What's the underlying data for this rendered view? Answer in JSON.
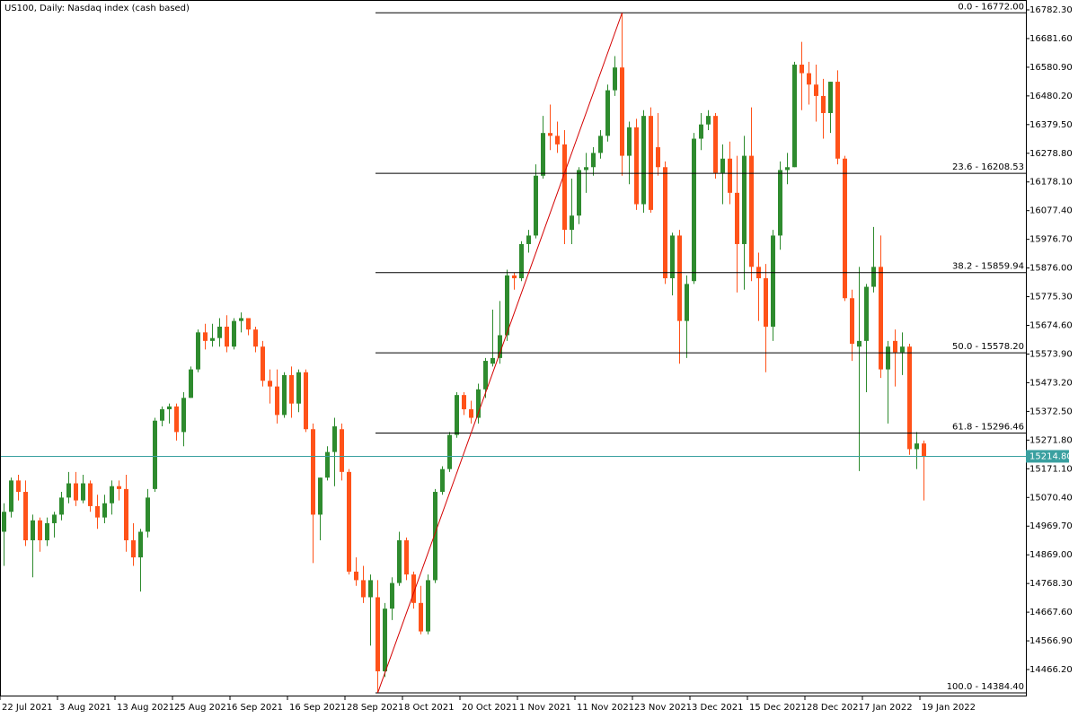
{
  "chart_data": {
    "type": "candlestick",
    "title": "US100, Daily:  Nasdaq index (cash based)",
    "categories": [
      "22 Jul 2021",
      null,
      null,
      null,
      null,
      null,
      null,
      null,
      "3 Aug 2021",
      null,
      null,
      null,
      null,
      null,
      null,
      null,
      "13 Aug 2021",
      null,
      null,
      null,
      null,
      null,
      null,
      null,
      "25 Aug 2021",
      null,
      null,
      null,
      null,
      null,
      null,
      null,
      "6 Sep 2021",
      null,
      null,
      null,
      null,
      null,
      null,
      null,
      "16 Sep 2021",
      null,
      null,
      null,
      null,
      null,
      null,
      null,
      "28 Sep 2021",
      null,
      null,
      null,
      null,
      null,
      null,
      null,
      "8 Oct 2021",
      null,
      null,
      null,
      null,
      null,
      null,
      null,
      "20 Oct 2021",
      null,
      null,
      null,
      null,
      null,
      null,
      null,
      "1 Nov 2021",
      null,
      null,
      null,
      null,
      null,
      null,
      null,
      "11 Nov 2021",
      null,
      null,
      null,
      null,
      null,
      null,
      null,
      "23 Nov 2021",
      null,
      null,
      null,
      null,
      null,
      null,
      null,
      "3 Dec 2021",
      null,
      null,
      null,
      null,
      null,
      null,
      null,
      "15 Dec 2021",
      null,
      null,
      null,
      null,
      null,
      null,
      null,
      "28 Dec 2021",
      null,
      null,
      null,
      null,
      null,
      null,
      null,
      "7 Jan 2022",
      null,
      null,
      null,
      null,
      null,
      null,
      null,
      "19 Jan 2022"
    ],
    "open": [
      14950,
      15020,
      15130,
      15090,
      14920,
      14990,
      14920,
      14980,
      15010,
      15070,
      15120,
      15060,
      15120,
      15040,
      15000,
      15050,
      15110,
      15100,
      14920,
      14860,
      14950,
      15100,
      15340,
      15380,
      15390,
      15300,
      15420,
      15520,
      15650,
      15620,
      15630,
      15670,
      15600,
      15690,
      15700,
      15660,
      15600,
      15480,
      15460,
      15360,
      15500,
      15400,
      15510,
      15310,
      15010,
      15140,
      15230,
      15310,
      15160,
      14810,
      14780,
      14720,
      14720,
      14460,
      14680,
      14770,
      14920,
      14800,
      14700,
      14600,
      14780,
      15090,
      15170,
      15290,
      15430,
      15380,
      15350,
      15450,
      15540,
      15560,
      15640,
      15850,
      15840,
      15960,
      15990,
      16200,
      16350,
      16340,
      16310,
      16010,
      16060,
      16220,
      16230,
      16280,
      16340,
      16500,
      16580,
      16270,
      16370,
      16100,
      16410,
      16300,
      16230,
      15840,
      15990,
      15690,
      15830,
      16330,
      16380,
      16410,
      16210,
      16260,
      16140,
      15960,
      16270,
      15880,
      15840,
      15670,
      15990,
      16220,
      16230,
      16590,
      16560,
      16520,
      16480,
      16420,
      16530,
      16260,
      15770,
      15600,
      15620,
      15810,
      15880,
      15520,
      15620,
      15580,
      15600,
      15240,
      15260
    ],
    "high": [
      15050,
      15140,
      15150,
      15130,
      15010,
      15000,
      15000,
      15020,
      15090,
      15160,
      15160,
      15150,
      15130,
      15080,
      15080,
      15130,
      15130,
      15150,
      14980,
      14960,
      15100,
      15350,
      15390,
      15400,
      15400,
      15440,
      15530,
      15660,
      15680,
      15680,
      15700,
      15710,
      15700,
      15720,
      15700,
      15670,
      15620,
      15520,
      15520,
      15510,
      15530,
      15520,
      15520,
      15330,
      15140,
      15250,
      15350,
      15330,
      15170,
      14860,
      14830,
      14800,
      14780,
      14700,
      14790,
      14950,
      14930,
      14810,
      14760,
      14800,
      15100,
      15180,
      15300,
      15440,
      15440,
      15410,
      15470,
      15560,
      15730,
      15760,
      15870,
      15860,
      15970,
      16010,
      16240,
      16410,
      16450,
      16390,
      16360,
      16190,
      16230,
      16280,
      16300,
      16360,
      16520,
      16620,
      16772,
      16390,
      16400,
      16430,
      16440,
      16420,
      16250,
      16000,
      16010,
      15850,
      16350,
      16420,
      16430,
      16420,
      16310,
      16320,
      16270,
      16340,
      16440,
      15930,
      15890,
      16010,
      16250,
      16280,
      16600,
      16670,
      16600,
      16590,
      16540,
      16530,
      16570,
      16270,
      15800,
      15880,
      15820,
      16020,
      15990,
      15620,
      15660,
      15650,
      15610,
      15300,
      15270
    ],
    "low": [
      14830,
      15000,
      15060,
      14900,
      14790,
      14880,
      14900,
      14930,
      14990,
      15050,
      15040,
      15050,
      15020,
      14960,
      14980,
      15010,
      15060,
      14880,
      14830,
      14740,
      14930,
      15090,
      15320,
      15330,
      15270,
      15250,
      15420,
      15510,
      15590,
      15600,
      15600,
      15580,
      15590,
      15650,
      15640,
      15580,
      15460,
      15400,
      15330,
      15350,
      15350,
      15370,
      15300,
      14840,
      14920,
      15130,
      15110,
      15130,
      14800,
      14760,
      14700,
      14550,
      14384.4,
      14440,
      14640,
      14760,
      14780,
      14680,
      14590,
      14590,
      14770,
      15080,
      15160,
      15280,
      15360,
      15330,
      15330,
      15420,
      15530,
      15540,
      15620,
      15800,
      15830,
      15930,
      15980,
      16190,
      16290,
      16280,
      15960,
      15960,
      16030,
      16140,
      16200,
      16260,
      16320,
      16480,
      16200,
      16170,
      16080,
      16070,
      16070,
      16200,
      15820,
      15780,
      15540,
      15560,
      15820,
      16290,
      16360,
      16190,
      16100,
      16100,
      15790,
      15800,
      15830,
      15690,
      15510,
      15620,
      15940,
      16170,
      16230,
      16430,
      16450,
      16390,
      16330,
      16350,
      16240,
      15760,
      15550,
      15163,
      15440,
      15790,
      15490,
      15330,
      15460,
      15500,
      15220,
      15170,
      15060
    ],
    "close": [
      15020,
      15130,
      15090,
      14920,
      14990,
      14920,
      14980,
      15010,
      15070,
      15120,
      15060,
      15120,
      15040,
      15000,
      15050,
      15110,
      15100,
      14920,
      14860,
      14950,
      15070,
      15340,
      15380,
      15390,
      15300,
      15420,
      15520,
      15650,
      15620,
      15630,
      15670,
      15600,
      15690,
      15700,
      15660,
      15600,
      15480,
      15460,
      15360,
      15500,
      15400,
      15510,
      15310,
      15010,
      15140,
      15230,
      15320,
      15160,
      14810,
      14780,
      14720,
      14780,
      14460,
      14680,
      14770,
      14920,
      14800,
      14700,
      14600,
      14780,
      15090,
      15170,
      15290,
      15430,
      15380,
      15350,
      15450,
      15550,
      15560,
      15640,
      15850,
      15840,
      15960,
      15990,
      16200,
      16350,
      16340,
      16310,
      16010,
      16060,
      16220,
      16230,
      16280,
      16340,
      16500,
      16580,
      16270,
      16370,
      16100,
      16410,
      16080,
      16230,
      15840,
      15990,
      15690,
      15820,
      16330,
      16380,
      16410,
      16210,
      16260,
      16140,
      15960,
      16270,
      15880,
      15840,
      15670,
      15990,
      16220,
      16230,
      16590,
      16560,
      16520,
      16480,
      16420,
      16530,
      16260,
      15770,
      15610,
      15620,
      15810,
      15880,
      15520,
      15600,
      15580,
      15600,
      15240,
      15260,
      15214.8
    ],
    "up_color": "#2e8b2e",
    "down_color": "#ff5219",
    "ylim": [
      14371.7,
      16813.8
    ],
    "yticks": [
      {
        "value": 16782.3,
        "label": "16782.30"
      },
      {
        "value": 16681.6,
        "label": "16681.60"
      },
      {
        "value": 16580.9,
        "label": "16580.90"
      },
      {
        "value": 16480.2,
        "label": "16480.20"
      },
      {
        "value": 16379.5,
        "label": "16379.50"
      },
      {
        "value": 16278.8,
        "label": "16278.80"
      },
      {
        "value": 16178.1,
        "label": "16178.10"
      },
      {
        "value": 16077.4,
        "label": "16077.40"
      },
      {
        "value": 15976.7,
        "label": "15976.70"
      },
      {
        "value": 15876,
        "label": "15876.00"
      },
      {
        "value": 15775.3,
        "label": "15775.30"
      },
      {
        "value": 15674.6,
        "label": "15674.60"
      },
      {
        "value": 15573.9,
        "label": "15573.90"
      },
      {
        "value": 15473.2,
        "label": "15473.20"
      },
      {
        "value": 15372.5,
        "label": "15372.50"
      },
      {
        "value": 15271.8,
        "label": "15271.80"
      },
      {
        "value": 15171.1,
        "label": "15171.10"
      },
      {
        "value": 15070.4,
        "label": "15070.40"
      },
      {
        "value": 14969.7,
        "label": "14969.70"
      },
      {
        "value": 14869,
        "label": "14869.00"
      },
      {
        "value": 14768.3,
        "label": "14768.30"
      },
      {
        "value": 14667.6,
        "label": "14667.60"
      },
      {
        "value": 14566.9,
        "label": "14566.90"
      },
      {
        "value": 14466.2,
        "label": "14466.20"
      }
    ],
    "current_price": {
      "value": 15214.8,
      "label": "15214.80",
      "color": "#3aa0a0"
    },
    "fibonacci": {
      "from": 14384.4,
      "to": 16772,
      "color": "#000000",
      "trend_color": "#d40000",
      "levels": [
        {
          "value": 16772,
          "label": "0.0 - 16772.00"
        },
        {
          "value": 16208.53,
          "label": "23.6 - 16208.53"
        },
        {
          "value": 15859.94,
          "label": "38.2 - 15859.94"
        },
        {
          "value": 15578.2,
          "label": "50.0 - 15578.20"
        },
        {
          "value": 15296.46,
          "label": "61.8 - 15296.46"
        },
        {
          "value": 14384.4,
          "label": "100.0 - 14384.40"
        }
      ]
    }
  }
}
